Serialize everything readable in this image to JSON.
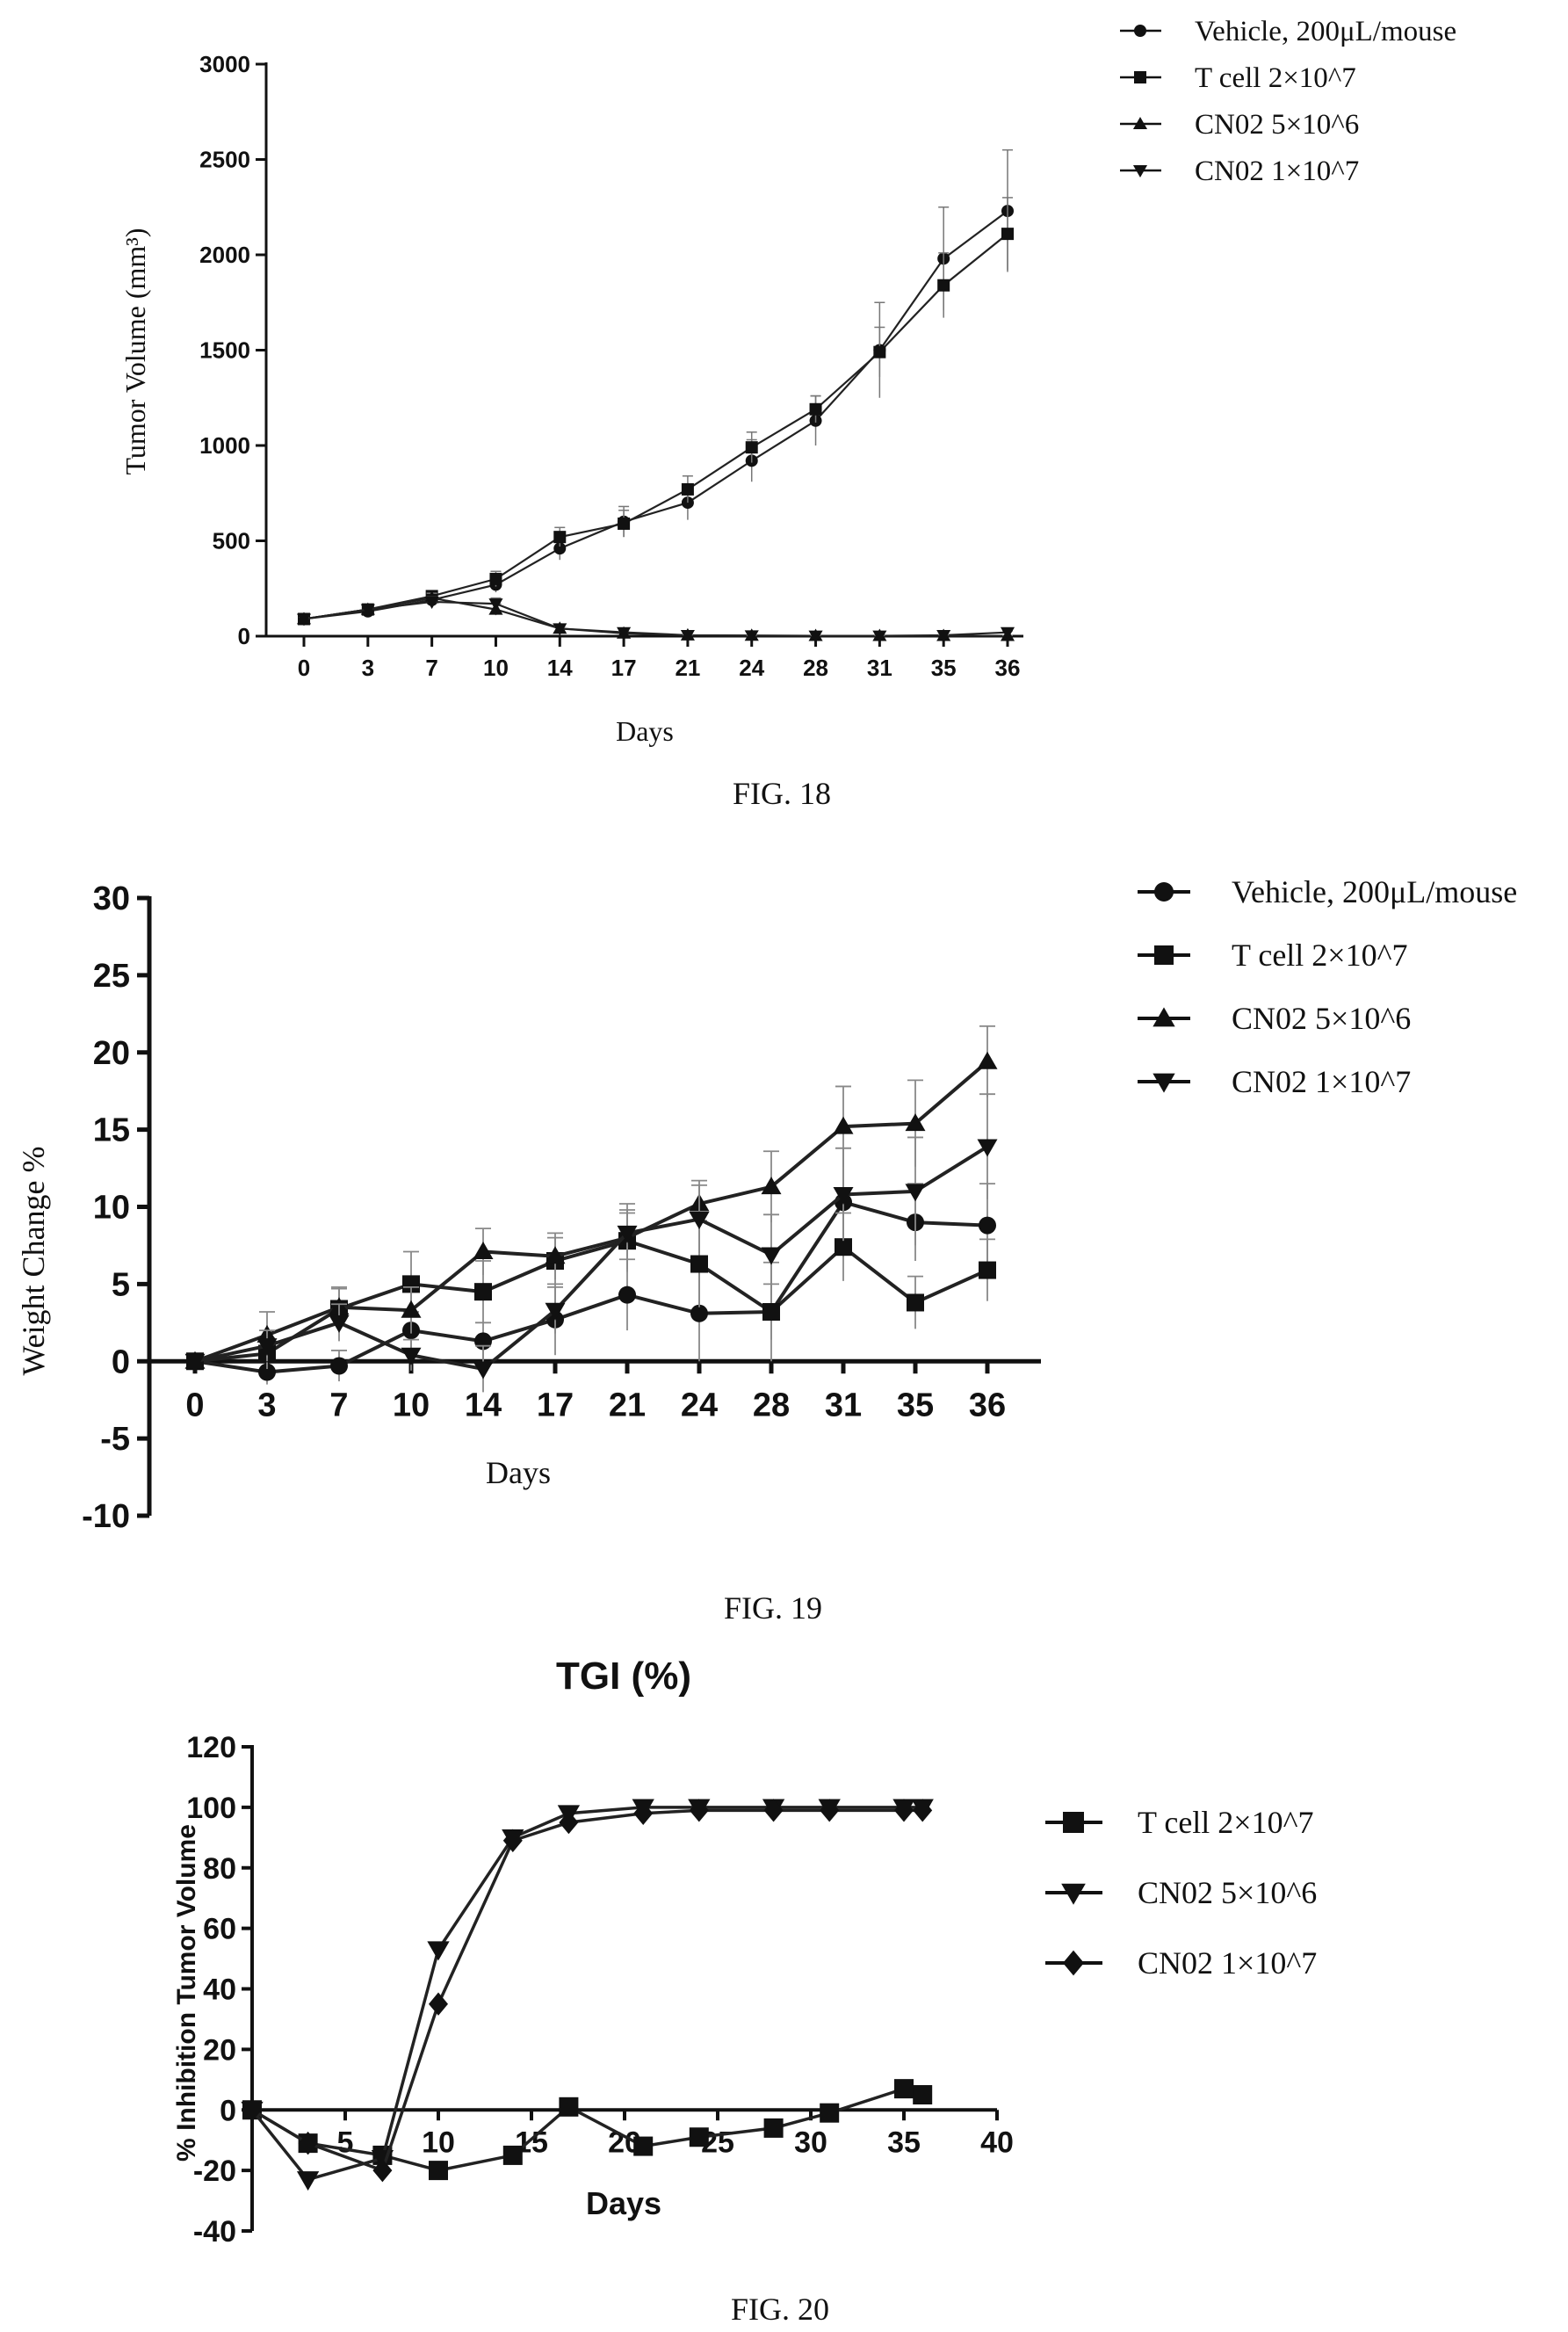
{
  "figures": {
    "fig18": "FIG. 18",
    "fig19": "FIG. 19",
    "fig20": "FIG. 20"
  },
  "chart_data": [
    {
      "id": "fig18",
      "type": "line",
      "title": "",
      "xlabel": "Days",
      "ylabel": "Tumor Volume (mm³)",
      "categories": [
        "0",
        "3",
        "7",
        "10",
        "14",
        "17",
        "21",
        "24",
        "28",
        "31",
        "35",
        "36"
      ],
      "yticks": [
        "0",
        "500",
        "1000",
        "1500",
        "2000",
        "2500",
        "3000"
      ],
      "ylim": [
        0,
        3000
      ],
      "legend_position": "top-right",
      "series": [
        {
          "name": "Vehicle, 200μL/mouse",
          "marker": "circle",
          "values": [
            90,
            130,
            190,
            270,
            460,
            600,
            700,
            920,
            1130,
            1500,
            1980,
            2230
          ],
          "err": [
            10,
            20,
            25,
            40,
            60,
            80,
            90,
            110,
            130,
            250,
            270,
            320
          ]
        },
        {
          "name": "T cell 2×10^7",
          "marker": "square",
          "values": [
            90,
            140,
            210,
            300,
            520,
            590,
            770,
            990,
            1190,
            1490,
            1840,
            2110
          ],
          "err": [
            10,
            20,
            25,
            40,
            50,
            70,
            70,
            80,
            70,
            130,
            170,
            190
          ]
        },
        {
          "name": "CN02 5×10^6",
          "marker": "triangle-up",
          "values": [
            90,
            140,
            200,
            140,
            40,
            15,
            5,
            3,
            2,
            2,
            2,
            2
          ],
          "err": [
            10,
            20,
            25,
            30,
            10,
            5,
            3,
            2,
            2,
            2,
            2,
            2
          ]
        },
        {
          "name": "CN02 1×10^7",
          "marker": "triangle-down",
          "values": [
            90,
            140,
            180,
            170,
            40,
            20,
            5,
            3,
            2,
            2,
            5,
            20
          ],
          "err": [
            10,
            20,
            25,
            30,
            10,
            8,
            3,
            2,
            2,
            2,
            3,
            8
          ]
        }
      ]
    },
    {
      "id": "fig19",
      "type": "line",
      "title": "",
      "xlabel": "Days",
      "ylabel": "Weight Change %",
      "categories": [
        "0",
        "3",
        "7",
        "10",
        "14",
        "17",
        "21",
        "24",
        "28",
        "31",
        "35",
        "36"
      ],
      "yticks": [
        "30",
        "25",
        "20",
        "15",
        "10",
        "5",
        "0",
        "-5",
        "-10"
      ],
      "ylim": [
        -10,
        30
      ],
      "legend_position": "top-right",
      "series": [
        {
          "name": "Vehicle, 200μL/mouse",
          "marker": "circle",
          "values": [
            0,
            -0.7,
            -0.3,
            2.0,
            1.3,
            2.7,
            4.3,
            3.1,
            3.2,
            10.3,
            9.0,
            8.8
          ],
          "err": [
            0,
            0.8,
            1.0,
            1.2,
            1.2,
            2.3,
            2.3,
            3.1,
            3.2,
            3.5,
            2.5,
            2.7
          ]
        },
        {
          "name": "T cell 2×10^7",
          "marker": "square",
          "values": [
            0,
            0.5,
            3.4,
            5.0,
            4.5,
            6.5,
            7.8,
            6.3,
            3.2,
            7.4,
            3.8,
            5.9
          ],
          "err": [
            0,
            1.0,
            1.3,
            2.1,
            2.0,
            1.5,
            1.8,
            2.8,
            1.8,
            2.2,
            1.7,
            2.0
          ]
        },
        {
          "name": "CN02 5×10^6",
          "marker": "triangle-up",
          "values": [
            0,
            1.7,
            3.5,
            3.3,
            7.1,
            6.8,
            8.0,
            10.2,
            11.3,
            15.2,
            15.4,
            19.4
          ],
          "err": [
            0,
            1.5,
            1.3,
            1.5,
            1.5,
            1.5,
            2.2,
            1.5,
            2.3,
            2.6,
            2.8,
            2.3
          ]
        },
        {
          "name": "CN02 1×10^7",
          "marker": "triangle-down",
          "values": [
            0,
            1.0,
            2.5,
            0.4,
            -0.5,
            3.3,
            8.3,
            9.2,
            6.9,
            10.8,
            11.0,
            13.9
          ],
          "err": [
            0,
            1.0,
            1.2,
            1.0,
            1.5,
            1.5,
            1.5,
            2.2,
            2.6,
            3.0,
            3.5,
            3.4
          ]
        }
      ]
    },
    {
      "id": "fig20",
      "type": "line",
      "title": "TGI (%)",
      "xlabel": "Days",
      "ylabel": "% Inhibition Tumor Volume",
      "xticks": [
        "5",
        "10",
        "15",
        "20",
        "25",
        "30",
        "35",
        "40"
      ],
      "yticks": [
        "120",
        "100",
        "80",
        "60",
        "40",
        "20",
        "0",
        "-20",
        "-40"
      ],
      "xlim": [
        0,
        40
      ],
      "ylim": [
        -40,
        120
      ],
      "legend_position": "right",
      "series": [
        {
          "name": "T cell 2×10^7",
          "marker": "square",
          "x": [
            0,
            3,
            7,
            10,
            14,
            17,
            21,
            24,
            28,
            31,
            35,
            36
          ],
          "values": [
            0,
            -11,
            -15,
            -20,
            -15,
            1,
            -12,
            -9,
            -6,
            -1,
            7,
            5
          ]
        },
        {
          "name": "CN02 5×10^6",
          "marker": "triangle-down",
          "x": [
            0,
            3,
            7,
            10,
            14,
            17,
            21,
            24,
            28,
            31,
            35,
            36
          ],
          "values": [
            0,
            -23,
            -16,
            53,
            90,
            98,
            100,
            100,
            100,
            100,
            100,
            100
          ]
        },
        {
          "name": "CN02 1×10^7",
          "marker": "diamond",
          "x": [
            0,
            3,
            7,
            10,
            14,
            17,
            21,
            24,
            28,
            31,
            35,
            36
          ],
          "values": [
            0,
            -11,
            -20,
            35,
            89,
            95,
            98,
            99,
            99,
            99,
            99,
            99
          ]
        }
      ]
    }
  ]
}
